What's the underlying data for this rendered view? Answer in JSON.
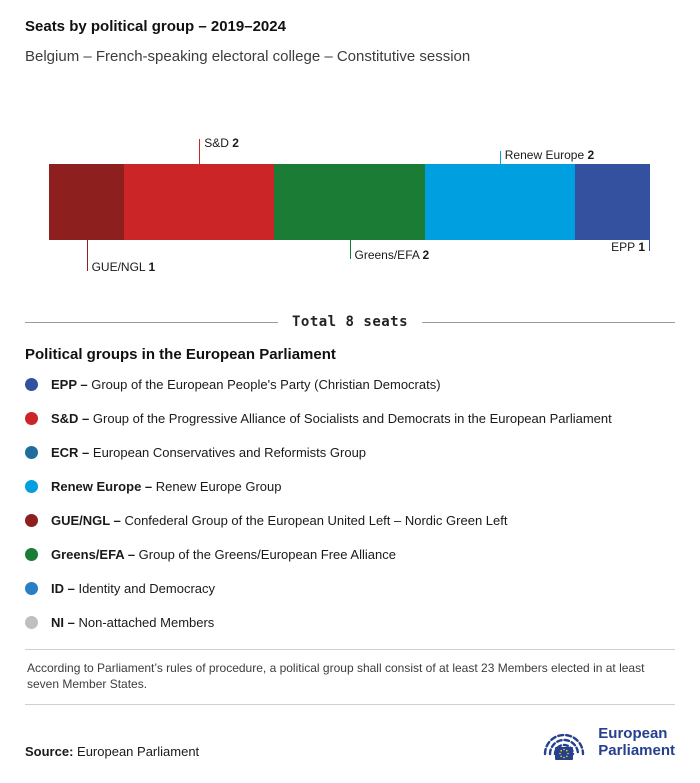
{
  "header": {
    "title": "Seats by political group – 2019–2024",
    "subtitle": "Belgium – French-speaking electoral college – Constitutive session"
  },
  "chart_data": {
    "type": "bar",
    "title": "Seats by political group – 2019–2024",
    "orientation": "horizontal-stacked",
    "total_seats": 8,
    "total_label": "Total 8 seats",
    "segments": [
      {
        "id": "gue-ngl",
        "group": "GUE/NGL",
        "seats": 1,
        "color": "#8d1f1f",
        "label_side": "bottom",
        "label_level": 3,
        "anchor": "center"
      },
      {
        "id": "s-d",
        "group": "S&D",
        "seats": 2,
        "color": "#cb2528",
        "label_side": "top",
        "label_level": 2,
        "anchor": "center"
      },
      {
        "id": "greens-efa",
        "group": "Greens/EFA",
        "seats": 2,
        "color": "#1b7d35",
        "label_side": "bottom",
        "label_level": 2,
        "anchor": "center"
      },
      {
        "id": "renew-europe",
        "group": "Renew Europe",
        "seats": 2,
        "color": "#00a0e0",
        "label_side": "top",
        "label_level": 1,
        "anchor": "center"
      },
      {
        "id": "epp",
        "group": "EPP",
        "seats": 1,
        "color": "#33519e",
        "label_side": "bottom",
        "label_level": 1,
        "anchor": "end"
      }
    ]
  },
  "legend": {
    "heading": "Political groups in the European Parliament",
    "items": [
      {
        "abbr": "EPP –",
        "name": "Group of the European People's Party (Christian Democrats)",
        "color": "#33519e"
      },
      {
        "abbr": "S&D –",
        "name": "Group of the Progressive Alliance of Socialists and Democrats in the European Parliament",
        "color": "#cb2528"
      },
      {
        "abbr": "ECR –",
        "name": "European Conservatives and Reformists Group",
        "color": "#1f6d9e"
      },
      {
        "abbr": "Renew Europe –",
        "name": "Renew Europe Group",
        "color": "#00a0e0"
      },
      {
        "abbr": "GUE/NGL –",
        "name": "Confederal Group of the European United Left – Nordic Green Left",
        "color": "#8d1f1f"
      },
      {
        "abbr": "Greens/EFA –",
        "name": "Group of the Greens/European Free Alliance",
        "color": "#1b7d35"
      },
      {
        "abbr": "ID –",
        "name": "Identity and Democracy",
        "color": "#2a7ec4"
      },
      {
        "abbr": "NI –",
        "name": "Non-attached Members",
        "color": "#bfbfbf"
      }
    ]
  },
  "footnote": "According to Parliament’s rules of procedure, a political group shall consist of at least 23 Members elected in at least seven Member States.",
  "source": {
    "label": "Source:",
    "value": "European Parliament"
  },
  "logo": {
    "line1": "European",
    "line2": "Parliament",
    "color": "#24408f"
  }
}
